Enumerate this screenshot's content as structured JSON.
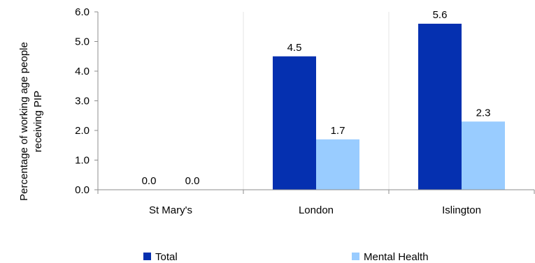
{
  "chart_data": {
    "type": "bar",
    "categories": [
      "St Mary's",
      "London",
      "Islington"
    ],
    "series": [
      {
        "name": "Total",
        "values": [
          0.0,
          4.5,
          5.6
        ],
        "color": "#0530b0"
      },
      {
        "name": "Mental Health",
        "values": [
          0.0,
          1.7,
          2.3
        ],
        "color": "#99ccff"
      }
    ],
    "ylabel_lines": [
      "Percentage of working age people",
      "receiving PIP"
    ],
    "ylim": [
      0,
      6
    ],
    "yticks": [
      "0.0",
      "1.0",
      "2.0",
      "3.0",
      "4.0",
      "5.0",
      "6.0"
    ],
    "data_labels": [
      [
        "0.0",
        "4.5",
        "5.6"
      ],
      [
        "0.0",
        "1.7",
        "2.3"
      ]
    ],
    "grid": "vertical category separators",
    "legend_position": "bottom"
  }
}
